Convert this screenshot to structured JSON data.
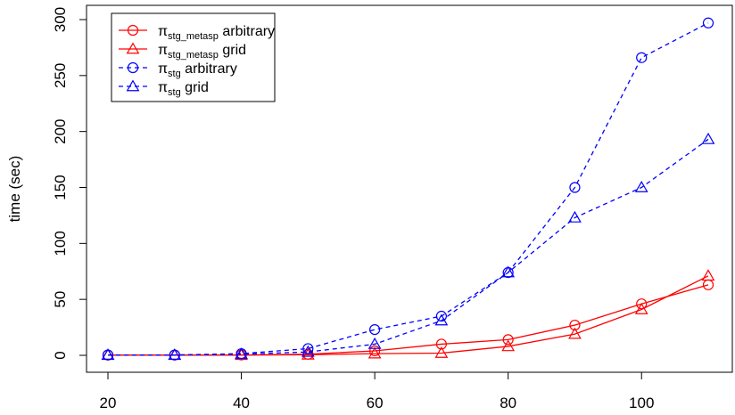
{
  "chart_data": {
    "type": "line",
    "title": "",
    "xlabel": "",
    "ylabel": "time (sec)",
    "xlim": [
      20,
      110
    ],
    "ylim": [
      0,
      300
    ],
    "x_ticks": [
      20,
      40,
      60,
      80,
      100
    ],
    "y_ticks": [
      0,
      50,
      100,
      150,
      200,
      250,
      300
    ],
    "grid": false,
    "legend_position": "top-left",
    "x": [
      20,
      30,
      40,
      50,
      60,
      70,
      80,
      90,
      100,
      110
    ],
    "series": [
      {
        "name": "πstg_metasp arbitrary",
        "name_base": "π",
        "name_sub": "stg_metasp",
        "name_rest": " arbitrary",
        "color": "#ff0000",
        "line": "solid",
        "marker": "circle",
        "values": [
          0.2,
          0.2,
          0.3,
          1.0,
          4.0,
          10.0,
          14.0,
          27.0,
          46.0,
          63.0
        ]
      },
      {
        "name": "πstg_metasp grid",
        "name_base": "π",
        "name_sub": "stg_metasp",
        "name_rest": " grid",
        "color": "#ff0000",
        "line": "solid",
        "marker": "triangle",
        "values": [
          0.2,
          0.2,
          0.2,
          0.5,
          1.5,
          2.0,
          8.0,
          19.0,
          41.0,
          71.0
        ]
      },
      {
        "name": "πstg arbitrary",
        "name_base": "π",
        "name_sub": "stg",
        "name_rest": " arbitrary",
        "color": "#0000ff",
        "line": "dashed",
        "marker": "circle",
        "values": [
          0.3,
          0.3,
          1.5,
          6.0,
          23.0,
          35.0,
          74.0,
          150.0,
          266.0,
          297.0
        ]
      },
      {
        "name": "πstg grid",
        "name_base": "π",
        "name_sub": "stg",
        "name_rest": " grid",
        "color": "#0000ff",
        "line": "dashed",
        "marker": "triangle",
        "values": [
          0.3,
          0.3,
          1.0,
          3.0,
          10.0,
          31.0,
          74.0,
          123.0,
          150.0,
          193.0
        ]
      }
    ]
  }
}
